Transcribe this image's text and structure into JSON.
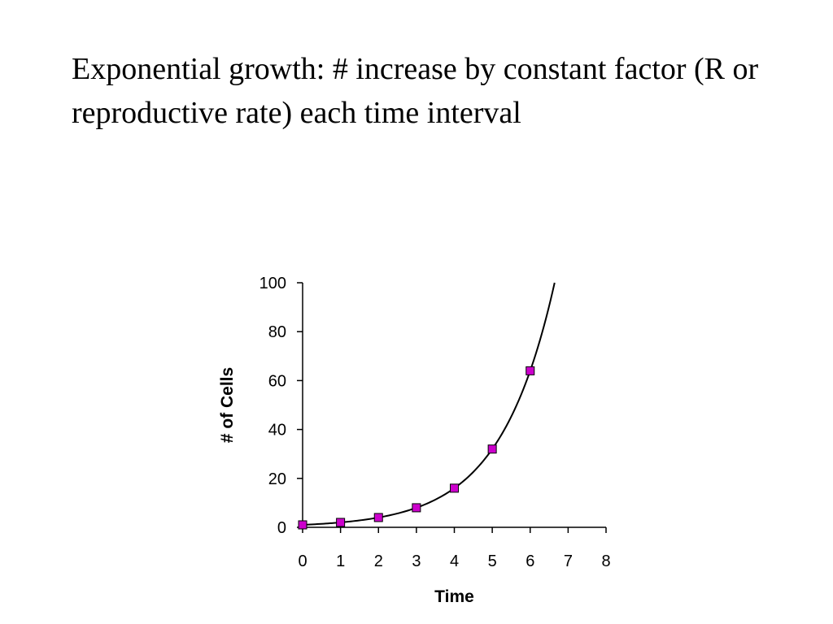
{
  "slide": {
    "title": "Exponential growth: # increase by constant factor (R or reproductive rate) each time interval"
  },
  "chart_data": {
    "type": "scatter",
    "title": "",
    "xlabel": "Time",
    "ylabel": "# of Cells",
    "xlim": [
      0,
      8
    ],
    "ylim": [
      0,
      100
    ],
    "x_ticks": [
      0,
      1,
      2,
      3,
      4,
      5,
      6,
      7,
      8
    ],
    "y_ticks": [
      0,
      20,
      40,
      60,
      80,
      100
    ],
    "grid": false,
    "legend": "none",
    "series": [
      {
        "x": [
          0,
          1,
          2,
          3,
          4,
          5,
          6
        ],
        "y": [
          1,
          2,
          4,
          8,
          16,
          32,
          64
        ],
        "marker": "square",
        "marker_color": "#cc00cc",
        "trendline": "exponential",
        "trendline_color": "#000000"
      }
    ]
  }
}
